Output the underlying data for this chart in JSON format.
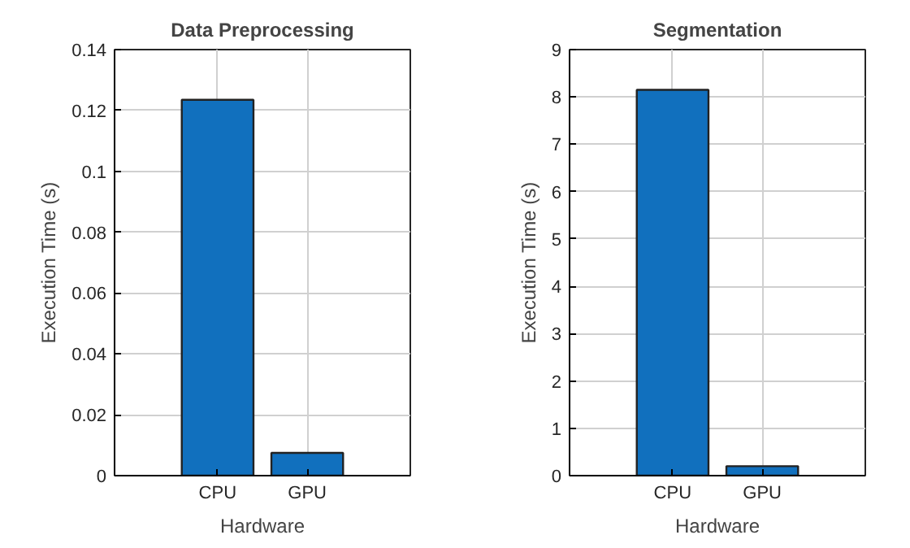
{
  "chart_data": [
    {
      "type": "bar",
      "title": "Data Preprocessing",
      "xlabel": "Hardware",
      "ylabel": "Execution Time (s)",
      "categories": [
        "CPU",
        "GPU"
      ],
      "values": [
        0.1235,
        0.0075
      ],
      "color": "#1170be",
      "ylim": [
        0,
        0.14
      ],
      "yticks": [
        0,
        0.02,
        0.04,
        0.06,
        0.08,
        0.1,
        0.12,
        0.14
      ],
      "grid": true
    },
    {
      "type": "bar",
      "title": "Segmentation",
      "xlabel": "Hardware",
      "ylabel": "Execution Time (s)",
      "categories": [
        "CPU",
        "GPU"
      ],
      "values": [
        8.15,
        0.2
      ],
      "color": "#1170be",
      "ylim": [
        0,
        9
      ],
      "yticks": [
        0,
        1,
        2,
        3,
        4,
        5,
        6,
        7,
        8,
        9
      ],
      "grid": true
    }
  ]
}
